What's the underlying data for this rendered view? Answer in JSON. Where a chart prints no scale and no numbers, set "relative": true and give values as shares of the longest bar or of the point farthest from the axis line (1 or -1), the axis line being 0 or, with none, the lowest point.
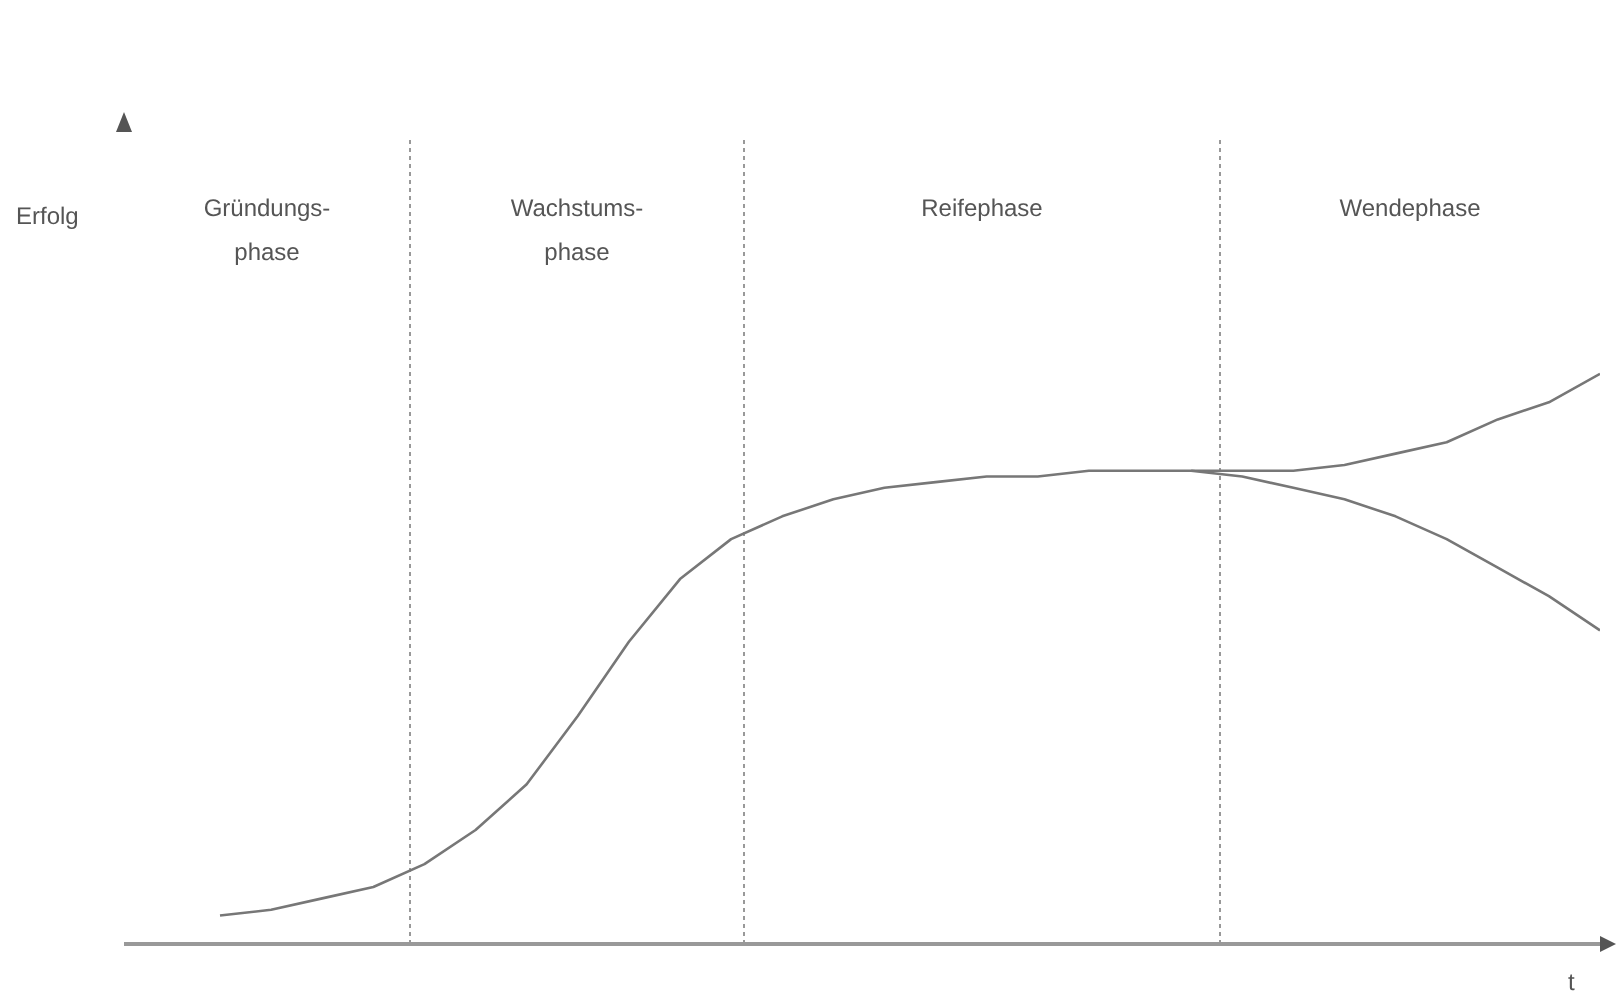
{
  "chart_data": {
    "type": "line",
    "relative": true,
    "xlabel": "t",
    "categories": [
      null,
      null,
      null,
      null,
      null,
      null,
      null,
      null,
      null,
      null,
      null,
      null,
      null,
      null,
      null,
      null,
      null,
      null,
      null,
      null,
      null,
      null,
      null,
      null,
      null,
      null,
      null,
      null
    ],
    "grid": false,
    "legend": false,
    "marker": "none",
    "line_style": "solid",
    "series": [
      {
        "color": "#777777",
        "values": [
          0.05,
          0.06,
          0.08,
          0.1,
          0.14,
          0.2,
          0.28,
          0.4,
          0.53,
          0.64,
          0.71,
          0.75,
          0.78,
          0.8,
          0.81,
          0.82,
          0.82,
          0.83,
          0.83,
          0.83,
          0.83,
          0.83,
          0.84,
          0.86,
          0.88,
          0.92,
          0.95,
          1
        ]
      },
      {
        "color": "#777777",
        "values": [
          null,
          null,
          null,
          null,
          null,
          null,
          null,
          null,
          null,
          null,
          null,
          null,
          null,
          null,
          null,
          null,
          null,
          null,
          null,
          0.83,
          0.82,
          0.8,
          0.78,
          0.75,
          0.71,
          0.66,
          0.61,
          0.55
        ]
      }
    ],
    "annotations": [
      "Gründungs-phase",
      "Wachstums-phase",
      "Reifephase",
      "Wendephase",
      "Erfolg"
    ]
  }
}
